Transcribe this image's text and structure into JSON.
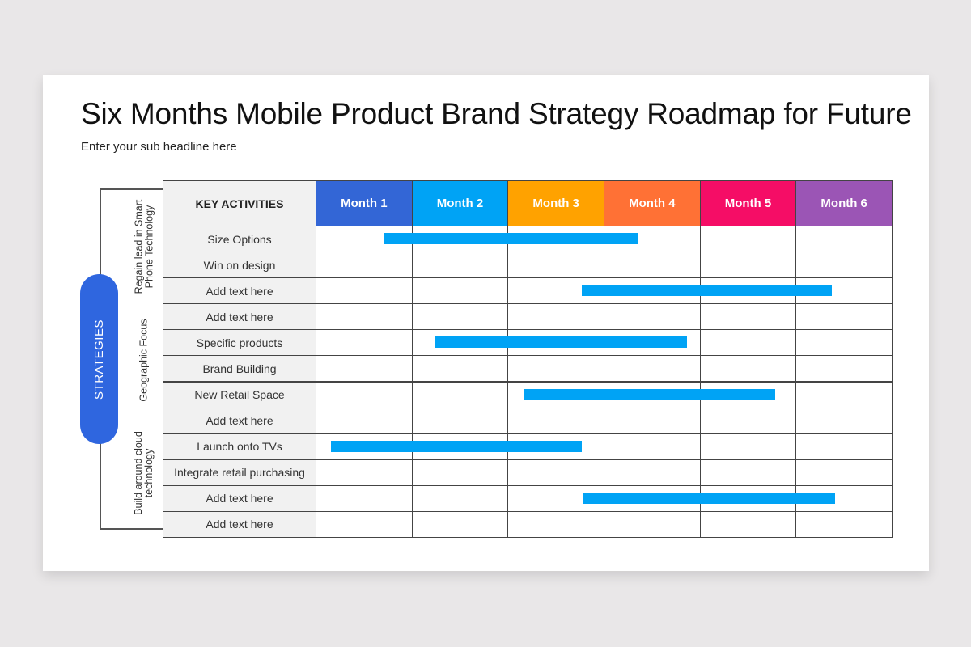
{
  "slide": {
    "title": "Six Months Mobile Product Brand Strategy Roadmap for Future",
    "subtitle": "Enter your sub headline here"
  },
  "sidebar": {
    "main_label": "STRATEGIES",
    "groups": [
      {
        "label": "Regain lead in Smart\nPhone Technology"
      },
      {
        "label": "Geographic Focus"
      },
      {
        "label": "Build around cloud\ntechnology"
      }
    ]
  },
  "table": {
    "header_key": "KEY ACTIVITIES",
    "months": [
      {
        "label": "Month 1",
        "color": "#3366d6"
      },
      {
        "label": "Month 2",
        "color": "#00a3f5"
      },
      {
        "label": "Month 3",
        "color": "#ffa200"
      },
      {
        "label": "Month 4",
        "color": "#ff7135"
      },
      {
        "label": "Month 5",
        "color": "#f50d66"
      },
      {
        "label": "Month 6",
        "color": "#9b55b5"
      }
    ],
    "rows": [
      {
        "activity": "Size Options",
        "bar": [
          0.72,
          3.35
        ]
      },
      {
        "activity": "Win on design",
        "bar": null
      },
      {
        "activity": "Add text here",
        "bar": [
          2.77,
          5.38
        ]
      },
      {
        "activity": "Add text here",
        "bar": null
      },
      {
        "activity": "Specific products",
        "bar": [
          1.25,
          3.87
        ]
      },
      {
        "activity": "Brand Building",
        "bar": null
      },
      {
        "activity": "New Retail Space",
        "bar": [
          2.17,
          4.79
        ]
      },
      {
        "activity": "Add text here",
        "bar": null
      },
      {
        "activity": "Launch onto TVs",
        "bar": [
          0.16,
          2.77
        ]
      },
      {
        "activity": "Integrate retail purchasing",
        "bar": null
      },
      {
        "activity": "Add text here",
        "bar": [
          2.79,
          5.41
        ]
      },
      {
        "activity": "Add text here",
        "bar": null
      }
    ],
    "bar_color": "#00a3f5"
  }
}
